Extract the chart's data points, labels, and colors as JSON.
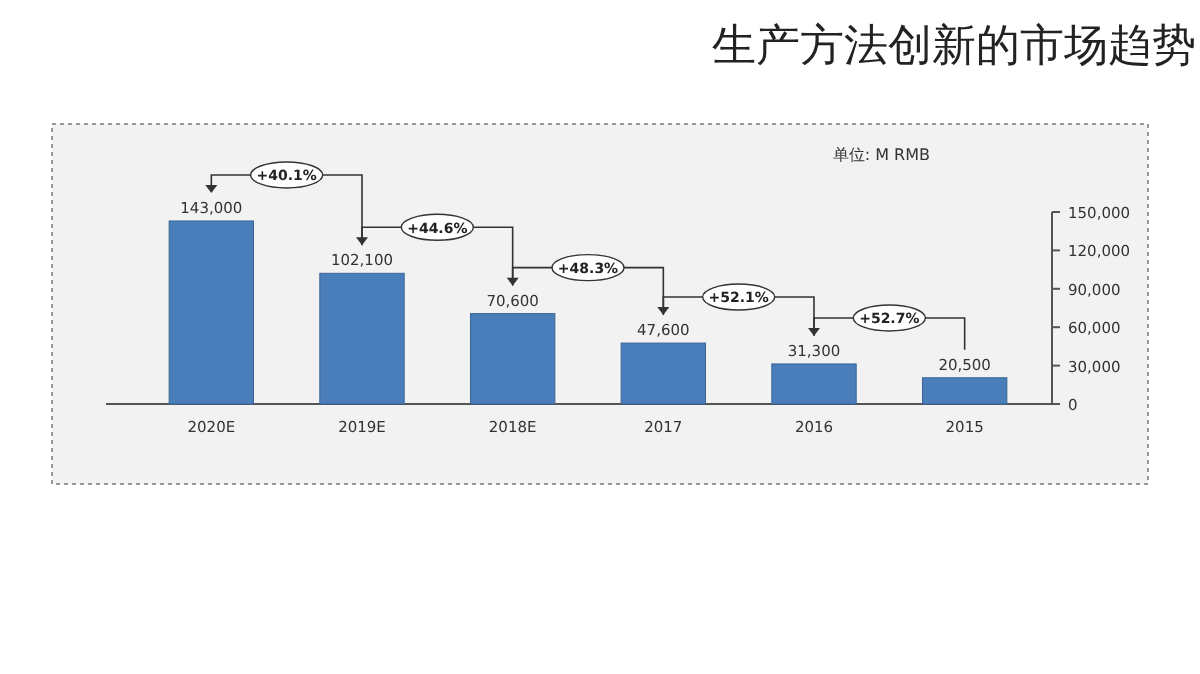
{
  "chart_data": {
    "type": "bar",
    "title": "生产方法创新的市场趋势",
    "subtitle": "单位:   M RMB",
    "categories": [
      "2020E",
      "2019E",
      "2018E",
      "2017",
      "2016",
      "2015"
    ],
    "values": [
      143000,
      102100,
      70600,
      47600,
      31300,
      20500
    ],
    "value_labels": [
      "143,000",
      "102,100",
      "70,600",
      "47,600",
      "31,300",
      "20,500"
    ],
    "color": "#4a7ebb",
    "ylim": [
      0,
      150000
    ],
    "yticks": [
      0,
      {
        "value": 30000,
        "label": "30,000"
      },
      {
        "value": 60000,
        "label": "60,000"
      },
      {
        "value": 90000,
        "label": "90,000"
      },
      {
        "value": 120000,
        "label": "120,000"
      },
      {
        "value": 150000,
        "label": "150,000"
      }
    ],
    "annotations": [
      "+40.1%",
      "+44.6%",
      "+48.3%",
      "+52.1%",
      "+52.7%"
    ]
  }
}
